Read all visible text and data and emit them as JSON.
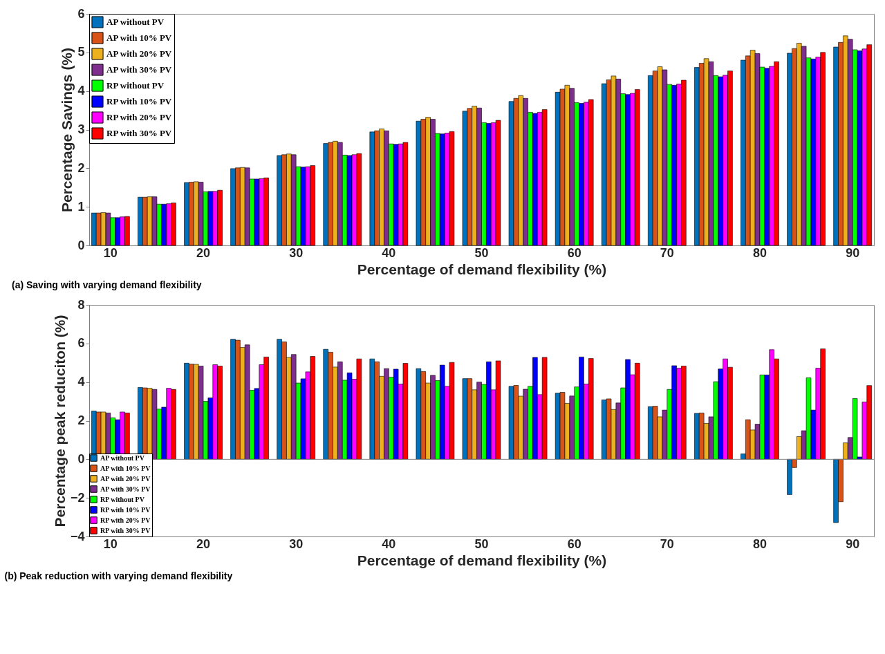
{
  "chart_data": [
    {
      "type": "bar",
      "title": "(a)     Saving with varying demand flexibility",
      "xlabel": "Percentage of demand flexibility (%)",
      "ylabel": "Percentage Savings (%)",
      "categories": [
        "10",
        null,
        "20",
        null,
        "30",
        null,
        "40",
        null,
        "50",
        null,
        "60",
        null,
        "70",
        null,
        "80",
        null,
        "90"
      ],
      "ylim": [
        0,
        6
      ],
      "yticks": [
        0,
        1,
        2,
        3,
        4,
        5,
        6
      ],
      "legend": "top left",
      "series": [
        {
          "name": "AP without PV",
          "color": "#0072bd",
          "values": [
            0.84,
            1.25,
            1.63,
            1.99,
            2.33,
            2.64,
            2.94,
            3.22,
            3.48,
            3.73,
            3.97,
            4.19,
            4.4,
            4.61,
            4.8,
            4.98,
            5.14
          ]
        },
        {
          "name": "AP with 10% PV",
          "color": "#d95319",
          "values": [
            0.84,
            1.25,
            1.64,
            2.01,
            2.35,
            2.67,
            2.97,
            3.27,
            3.55,
            3.81,
            4.05,
            4.29,
            4.52,
            4.72,
            4.91,
            5.1,
            5.26
          ]
        },
        {
          "name": "AP with 20% PV",
          "color": "#edb120",
          "values": [
            0.85,
            1.26,
            1.65,
            2.02,
            2.37,
            2.7,
            3.02,
            3.32,
            3.61,
            3.88,
            4.15,
            4.39,
            4.63,
            4.84,
            5.06,
            5.24,
            5.43
          ]
        },
        {
          "name": "AP with 30% PV",
          "color": "#7e2f8e",
          "values": [
            0.84,
            1.26,
            1.64,
            2.01,
            2.35,
            2.67,
            2.97,
            3.27,
            3.56,
            3.81,
            4.07,
            4.31,
            4.55,
            4.76,
            4.97,
            5.16,
            5.34
          ]
        },
        {
          "name": "RP without PV",
          "color": "#00ff00",
          "values": [
            0.72,
            1.07,
            1.39,
            1.72,
            2.04,
            2.34,
            2.63,
            2.9,
            3.18,
            3.45,
            3.7,
            3.93,
            4.17,
            4.4,
            4.62,
            4.86,
            5.07
          ]
        },
        {
          "name": "RP with 10% PV",
          "color": "#0000ff",
          "values": [
            0.72,
            1.07,
            1.4,
            1.72,
            2.03,
            2.33,
            2.62,
            2.89,
            3.16,
            3.42,
            3.68,
            3.91,
            4.15,
            4.37,
            4.59,
            4.83,
            5.04
          ]
        },
        {
          "name": "RP with 20% PV",
          "color": "#ff00ff",
          "values": [
            0.74,
            1.08,
            1.4,
            1.73,
            2.04,
            2.35,
            2.63,
            2.91,
            3.18,
            3.45,
            3.71,
            3.94,
            4.18,
            4.41,
            4.64,
            4.88,
            5.09
          ]
        },
        {
          "name": "RP with 30% PV",
          "color": "#ff0000",
          "values": [
            0.75,
            1.1,
            1.43,
            1.75,
            2.07,
            2.38,
            2.67,
            2.95,
            3.24,
            3.52,
            3.78,
            4.04,
            4.28,
            4.52,
            4.76,
            5.0,
            5.2
          ]
        }
      ]
    },
    {
      "type": "bar",
      "title": "(b)     Peak reduction with varying demand flexibility",
      "xlabel": "Percentage of demand flexibility (%)",
      "ylabel": "Percentage peak reduciton (%)",
      "categories": [
        "10",
        null,
        "20",
        null,
        "30",
        null,
        "40",
        null,
        "50",
        null,
        "60",
        null,
        "70",
        null,
        "80",
        null,
        "90"
      ],
      "ylim": [
        -4,
        8
      ],
      "yticks": [
        -4,
        -2,
        0,
        2,
        4,
        6,
        8
      ],
      "legend": "bottom left",
      "ref_lines": [
        {
          "axis": "y",
          "value": 0,
          "color": "#808080"
        }
      ],
      "series": [
        {
          "name": "AP without PV",
          "color": "#0072bd",
          "values": [
            2.5,
            3.72,
            4.98,
            6.22,
            6.22,
            5.7,
            5.2,
            4.7,
            4.18,
            3.78,
            3.43,
            3.08,
            2.73,
            2.38,
            0.28,
            -1.83,
            -3.28
          ]
        },
        {
          "name": "AP with 10% PV",
          "color": "#d95319",
          "values": [
            2.45,
            3.7,
            4.93,
            6.17,
            6.08,
            5.55,
            5.05,
            4.55,
            4.18,
            3.83,
            3.47,
            3.13,
            2.75,
            2.4,
            2.05,
            -0.43,
            -2.2
          ]
        },
        {
          "name": "AP with 20% PV",
          "color": "#edb120",
          "values": [
            2.45,
            3.68,
            4.92,
            5.8,
            5.28,
            4.78,
            4.3,
            3.95,
            3.6,
            3.27,
            2.9,
            2.58,
            2.2,
            1.86,
            1.52,
            1.18,
            0.85
          ]
        },
        {
          "name": "AP with 30% PV",
          "color": "#7e2f8e",
          "values": [
            2.4,
            3.62,
            4.83,
            5.93,
            5.43,
            5.05,
            4.7,
            4.35,
            4.0,
            3.63,
            3.28,
            2.92,
            2.55,
            2.2,
            1.82,
            1.48,
            1.13
          ]
        },
        {
          "name": "RP without PV",
          "color": "#00ff00",
          "values": [
            2.15,
            2.6,
            3.0,
            3.58,
            3.95,
            4.1,
            4.25,
            4.08,
            3.88,
            3.78,
            3.75,
            3.7,
            3.62,
            4.02,
            4.37,
            4.22,
            3.15
          ]
        },
        {
          "name": "RP with 10% PV",
          "color": "#0000ff",
          "values": [
            2.05,
            2.7,
            3.18,
            3.67,
            4.17,
            4.48,
            4.67,
            4.88,
            5.05,
            5.28,
            5.3,
            5.17,
            4.85,
            4.68,
            4.37,
            2.55,
            0.12
          ]
        },
        {
          "name": "RP with 20% PV",
          "color": "#ff00ff",
          "values": [
            2.45,
            3.68,
            4.9,
            4.9,
            4.53,
            4.15,
            3.9,
            3.78,
            3.6,
            3.35,
            3.9,
            4.38,
            4.72,
            5.2,
            5.68,
            4.72,
            2.97
          ]
        },
        {
          "name": "RP with 30% PV",
          "color": "#ff0000",
          "values": [
            2.4,
            3.62,
            4.83,
            5.3,
            5.33,
            5.2,
            4.97,
            5.02,
            5.1,
            5.28,
            5.22,
            4.98,
            4.83,
            4.77,
            5.2,
            5.72,
            3.82
          ]
        }
      ]
    }
  ]
}
